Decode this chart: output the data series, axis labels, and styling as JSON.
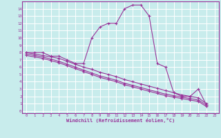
{
  "xlabel": "Windchill (Refroidissement éolien,°C)",
  "background_color": "#c8ecec",
  "line_color": "#993399",
  "grid_color": "#ffffff",
  "xlim": [
    -0.5,
    23.5
  ],
  "ylim": [
    -0.3,
    15.0
  ],
  "xticks": [
    0,
    1,
    2,
    3,
    4,
    5,
    6,
    7,
    8,
    9,
    10,
    11,
    12,
    13,
    14,
    15,
    16,
    17,
    18,
    19,
    20,
    21,
    22,
    23
  ],
  "yticks": [
    0,
    1,
    2,
    3,
    4,
    5,
    6,
    7,
    8,
    9,
    10,
    11,
    12,
    13,
    14
  ],
  "series1_x": [
    0,
    1,
    2,
    3,
    4,
    5,
    6,
    7,
    8,
    9,
    10,
    11,
    12,
    13,
    14,
    15,
    16,
    17,
    18,
    19,
    20,
    21,
    22
  ],
  "series1_y": [
    8.0,
    8.0,
    8.0,
    7.5,
    7.5,
    7.0,
    6.5,
    6.5,
    10.0,
    11.5,
    12.0,
    12.0,
    14.0,
    14.5,
    14.5,
    13.0,
    6.5,
    6.0,
    2.5,
    2.0,
    2.0,
    3.0,
    0.8
  ],
  "series2_x": [
    0,
    1,
    2,
    3,
    4,
    5,
    6,
    7,
    8,
    9,
    10,
    11,
    12,
    13,
    14,
    15,
    16,
    17,
    18,
    19,
    20,
    21,
    22
  ],
  "series2_y": [
    8.0,
    7.8,
    7.6,
    7.4,
    7.2,
    6.8,
    6.4,
    6.0,
    5.7,
    5.3,
    5.0,
    4.7,
    4.3,
    4.0,
    3.7,
    3.4,
    3.1,
    2.8,
    2.5,
    2.2,
    2.0,
    1.8,
    1.0
  ],
  "series3_x": [
    0,
    1,
    2,
    3,
    4,
    5,
    6,
    7,
    8,
    9,
    10,
    11,
    12,
    13,
    14,
    15,
    16,
    17,
    18,
    19,
    20,
    21,
    22
  ],
  "series3_y": [
    7.8,
    7.6,
    7.4,
    7.1,
    6.8,
    6.4,
    6.0,
    5.6,
    5.2,
    4.8,
    4.5,
    4.2,
    3.8,
    3.5,
    3.2,
    2.9,
    2.6,
    2.3,
    2.1,
    1.9,
    1.7,
    1.5,
    0.8
  ],
  "series4_x": [
    0,
    1,
    2,
    3,
    4,
    5,
    6,
    7,
    8,
    9,
    10,
    11,
    12,
    13,
    14,
    15,
    16,
    17,
    18,
    19,
    20,
    21,
    22
  ],
  "series4_y": [
    7.6,
    7.4,
    7.2,
    6.9,
    6.6,
    6.2,
    5.8,
    5.4,
    5.0,
    4.6,
    4.3,
    4.0,
    3.6,
    3.3,
    3.0,
    2.7,
    2.4,
    2.1,
    1.9,
    1.7,
    1.5,
    1.3,
    0.6
  ]
}
